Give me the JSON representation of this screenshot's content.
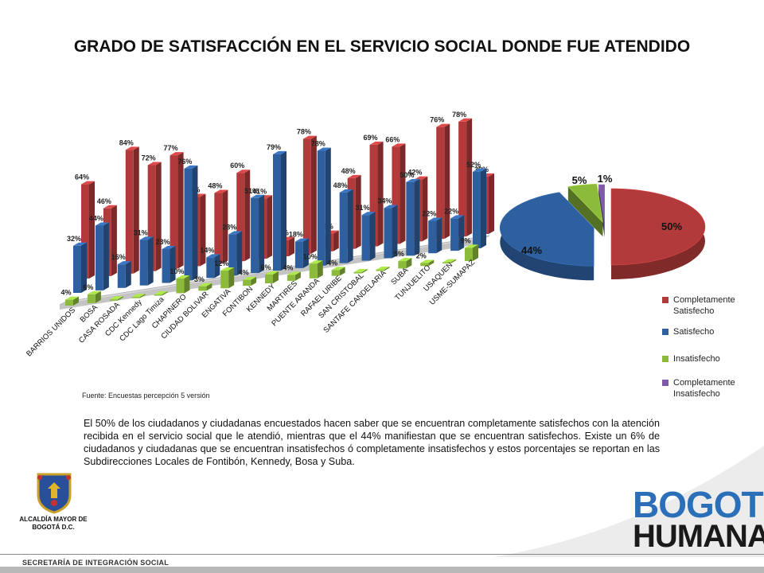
{
  "title": "GRADO DE SATISFACCIÓN EN EL SERVICIO SOCIAL DONDE FUE ATENDIDO",
  "chart_data": [
    {
      "type": "bar",
      "categories": [
        "BARRIOS UNIDOS",
        "BOSA",
        "CASA ROSADA",
        "CDC Kennedy",
        "CDC Lago Timiza",
        "CHAPINERO",
        "CIUDAD BOLIVAR",
        "ENGATIVA",
        "FONTIBON",
        "KENNEDY",
        "MARTIRES",
        "PUENTE ARANDA",
        "RAFAEL URIBE",
        "SAN CRISTOBAL",
        "SANTAFE CANDELARIA",
        "SUBA",
        "TUNJUELITO",
        "USAQUEN",
        "USME-SUMAPAZ"
      ],
      "series": [
        {
          "name": "Completamente Satisfecho",
          "values": [
            64,
            46,
            84,
            72,
            77,
            47,
            48,
            60,
            41,
            11,
            78,
            12,
            48,
            69,
            66,
            42,
            76,
            78,
            39
          ]
        },
        {
          "name": "Satisfecho",
          "values": [
            32,
            44,
            16,
            31,
            23,
            76,
            14,
            28,
            51,
            79,
            18,
            78,
            48,
            31,
            34,
            50,
            22,
            22,
            52
          ]
        },
        {
          "name": "Insatisfecho",
          "values": [
            4,
            6,
            0,
            0,
            0,
            10,
            3,
            12,
            4,
            6,
            4,
            10,
            4,
            0,
            0,
            5,
            2,
            0,
            9
          ]
        },
        {
          "name": "Completamente Insatisfecho",
          "values": [
            0,
            0,
            0,
            0,
            0,
            0,
            0,
            0,
            0,
            0,
            0,
            0,
            0,
            0,
            0,
            0,
            0,
            0,
            0
          ]
        }
      ],
      "data_label_suffix": "%",
      "ylim": [
        0,
        100
      ],
      "grid": false,
      "legend": "right"
    },
    {
      "type": "pie",
      "labels": [
        "Completamente Satisfecho",
        "Satisfecho",
        "Insatisfecho",
        "Completamente Insatisfecho"
      ],
      "values": [
        50,
        44,
        5,
        1
      ],
      "slice_labels": [
        "50%",
        "44%",
        "5%",
        "1%"
      ],
      "legend": "bottom-right"
    }
  ],
  "colors": {
    "completamente_satisfecho": "#b33a3a",
    "satisfecho": "#2e5f9e",
    "insatisfecho": "#8cbb3c",
    "completamente_insatisfecho": "#7f5aa6"
  },
  "legend": [
    {
      "label": "Completamente Satisfecho",
      "color": "#b33a3a"
    },
    {
      "label": "Satisfecho",
      "color": "#2e5f9e"
    },
    {
      "label": "Insatisfecho",
      "color": "#8cbb3c"
    },
    {
      "label": "Completamente Insatisfecho",
      "color": "#7f5aa6"
    }
  ],
  "source": "Fuente: Encuestas percepción 5 versión",
  "paragraph": "El 50% de los ciudadanos y ciudadanas encuestados hacen saber que se encuentran completamente satisfechos con la atención recibida en el servicio social que le atendió, mientras que el 44% manifiestan que se encuentran satisfechos. Existe un 6% de ciudadanos y ciudadanas que se encuentran insatisfechos ó completamente insatisfechos y estos porcentajes se reportan en las Subdirecciones Locales de Fontibón, Kennedy, Bosa y Suba.",
  "footer": {
    "secretaria": "SECRETARÍA DE INTEGRACIÓN SOCIAL",
    "alcaldia": "ALCALDÍA MAYOR DE BOGOTÁ D.C.",
    "brand_line1": "BOGOTÁ",
    "brand_line2": "HUMANA"
  },
  "icons": {
    "crest": "bogota-crest-icon"
  }
}
